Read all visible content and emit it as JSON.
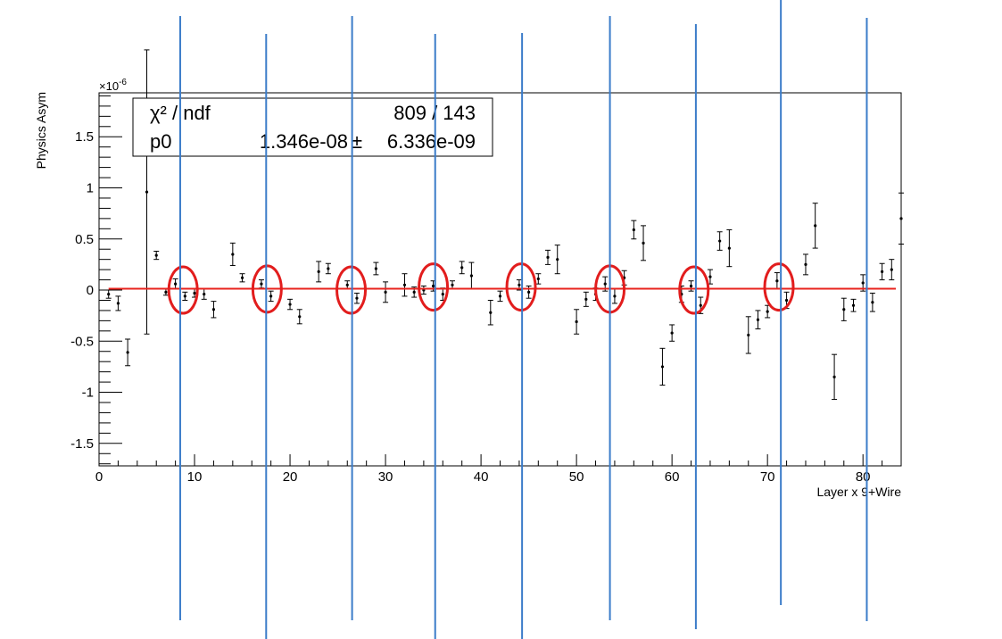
{
  "chart_data": {
    "type": "scatter",
    "xlabel": "Layer x 9+Wire",
    "ylabel": "Physics Asym",
    "y_exponent_label": "×10",
    "y_exponent_power": "-6",
    "xlim": [
      0,
      84
    ],
    "ylim": [
      -1.72,
      1.93
    ],
    "x_ticks": [
      0,
      10,
      20,
      30,
      40,
      50,
      60,
      70,
      80
    ],
    "x_tick_labels": [
      "0",
      "10",
      "20",
      "30",
      "40",
      "50",
      "60",
      "70",
      "80"
    ],
    "y_ticks": [
      -1.5,
      -1,
      -0.5,
      0,
      0.5,
      1,
      1.5
    ],
    "y_tick_labels": [
      "-1.5",
      "-1",
      "-0.5",
      "0",
      "0.5",
      "1",
      "1.5"
    ],
    "stats_box": {
      "row1_label": "χ² / ndf",
      "row1_value": "809 / 143",
      "row2_label": "p0",
      "row2_value": "1.346e-08",
      "row2_pm": "±",
      "row2_error": "6.336e-09"
    },
    "fit": {
      "name": "p0",
      "value": 0.01346,
      "color": "#e8231e"
    },
    "points": [
      {
        "x": 1,
        "y": -0.04,
        "err": 0.04
      },
      {
        "x": 2,
        "y": -0.13,
        "err": 0.07
      },
      {
        "x": 3,
        "y": -0.61,
        "err": 0.13
      },
      {
        "x": 5,
        "y": 0.96,
        "err": 1.39
      },
      {
        "x": 6,
        "y": 0.34,
        "err": 0.04
      },
      {
        "x": 7,
        "y": -0.02,
        "err": 0.03
      },
      {
        "x": 8,
        "y": 0.06,
        "err": 0.05
      },
      {
        "x": 9,
        "y": -0.06,
        "err": 0.04
      },
      {
        "x": 10,
        "y": -0.03,
        "err": 0.04
      },
      {
        "x": 11,
        "y": -0.04,
        "err": 0.05
      },
      {
        "x": 12,
        "y": -0.19,
        "err": 0.08
      },
      {
        "x": 14,
        "y": 0.35,
        "err": 0.11
      },
      {
        "x": 15,
        "y": 0.12,
        "err": 0.04
      },
      {
        "x": 17,
        "y": 0.06,
        "err": 0.04
      },
      {
        "x": 18,
        "y": -0.06,
        "err": 0.05
      },
      {
        "x": 20,
        "y": -0.14,
        "err": 0.05
      },
      {
        "x": 21,
        "y": -0.26,
        "err": 0.07
      },
      {
        "x": 23,
        "y": 0.18,
        "err": 0.1
      },
      {
        "x": 24,
        "y": 0.21,
        "err": 0.05
      },
      {
        "x": 26,
        "y": 0.05,
        "err": 0.04
      },
      {
        "x": 27,
        "y": -0.08,
        "err": 0.05
      },
      {
        "x": 29,
        "y": 0.21,
        "err": 0.06
      },
      {
        "x": 30,
        "y": -0.02,
        "err": 0.1
      },
      {
        "x": 32,
        "y": 0.05,
        "err": 0.11
      },
      {
        "x": 33,
        "y": -0.02,
        "err": 0.05
      },
      {
        "x": 34,
        "y": 0.0,
        "err": 0.04
      },
      {
        "x": 35,
        "y": 0.04,
        "err": 0.05
      },
      {
        "x": 36,
        "y": -0.04,
        "err": 0.06
      },
      {
        "x": 37,
        "y": 0.05,
        "err": 0.04
      },
      {
        "x": 38,
        "y": 0.22,
        "err": 0.06
      },
      {
        "x": 39,
        "y": 0.14,
        "err": 0.13
      },
      {
        "x": 41,
        "y": -0.22,
        "err": 0.12
      },
      {
        "x": 42,
        "y": -0.06,
        "err": 0.05
      },
      {
        "x": 44,
        "y": 0.05,
        "err": 0.05
      },
      {
        "x": 45,
        "y": -0.02,
        "err": 0.06
      },
      {
        "x": 46,
        "y": 0.11,
        "err": 0.05
      },
      {
        "x": 47,
        "y": 0.32,
        "err": 0.07
      },
      {
        "x": 48,
        "y": 0.3,
        "err": 0.14
      },
      {
        "x": 50,
        "y": -0.31,
        "err": 0.12
      },
      {
        "x": 51,
        "y": -0.09,
        "err": 0.07
      },
      {
        "x": 52,
        "y": -0.04,
        "err": 0.06
      },
      {
        "x": 53,
        "y": 0.06,
        "err": 0.07
      },
      {
        "x": 54,
        "y": -0.06,
        "err": 0.07
      },
      {
        "x": 55,
        "y": 0.12,
        "err": 0.07
      },
      {
        "x": 56,
        "y": 0.59,
        "err": 0.09
      },
      {
        "x": 57,
        "y": 0.46,
        "err": 0.17
      },
      {
        "x": 59,
        "y": -0.75,
        "err": 0.18
      },
      {
        "x": 60,
        "y": -0.42,
        "err": 0.08
      },
      {
        "x": 61,
        "y": -0.04,
        "err": 0.08
      },
      {
        "x": 62,
        "y": 0.04,
        "err": 0.05
      },
      {
        "x": 63,
        "y": -0.15,
        "err": 0.08
      },
      {
        "x": 64,
        "y": 0.13,
        "err": 0.07
      },
      {
        "x": 65,
        "y": 0.48,
        "err": 0.09
      },
      {
        "x": 66,
        "y": 0.41,
        "err": 0.18
      },
      {
        "x": 68,
        "y": -0.44,
        "err": 0.18
      },
      {
        "x": 69,
        "y": -0.29,
        "err": 0.09
      },
      {
        "x": 70,
        "y": -0.21,
        "err": 0.06
      },
      {
        "x": 71,
        "y": 0.09,
        "err": 0.08
      },
      {
        "x": 72,
        "y": -0.1,
        "err": 0.08
      },
      {
        "x": 74,
        "y": 0.25,
        "err": 0.1
      },
      {
        "x": 75,
        "y": 0.63,
        "err": 0.22
      },
      {
        "x": 77,
        "y": -0.85,
        "err": 0.22
      },
      {
        "x": 78,
        "y": -0.19,
        "err": 0.11
      },
      {
        "x": 79,
        "y": -0.15,
        "err": 0.06
      },
      {
        "x": 80,
        "y": 0.07,
        "err": 0.08
      },
      {
        "x": 81,
        "y": -0.12,
        "err": 0.09
      },
      {
        "x": 82,
        "y": 0.18,
        "err": 0.08
      },
      {
        "x": 83,
        "y": 0.2,
        "err": 0.1
      },
      {
        "x": 84,
        "y": 0.7,
        "err": 0.25
      }
    ],
    "highlight_circles": [
      {
        "x": 8.8,
        "y": 0.0
      },
      {
        "x": 17.6,
        "y": 0.01
      },
      {
        "x": 26.4,
        "y": 0.0
      },
      {
        "x": 35.0,
        "y": 0.03
      },
      {
        "x": 44.2,
        "y": 0.03
      },
      {
        "x": 53.5,
        "y": 0.01
      },
      {
        "x": 62.3,
        "y": 0.0
      },
      {
        "x": 71.2,
        "y": 0.03
      }
    ],
    "vertical_markers": [
      8.5,
      17.5,
      26.5,
      35.2,
      44.3,
      53.5,
      62.5,
      71.4,
      80.4
    ],
    "colors": {
      "axis": "#000000",
      "points": "#000000",
      "fit_line": "#e8231e",
      "highlight_circles": "#e21d1d",
      "vertical_markers": "#3b7cc9"
    }
  }
}
